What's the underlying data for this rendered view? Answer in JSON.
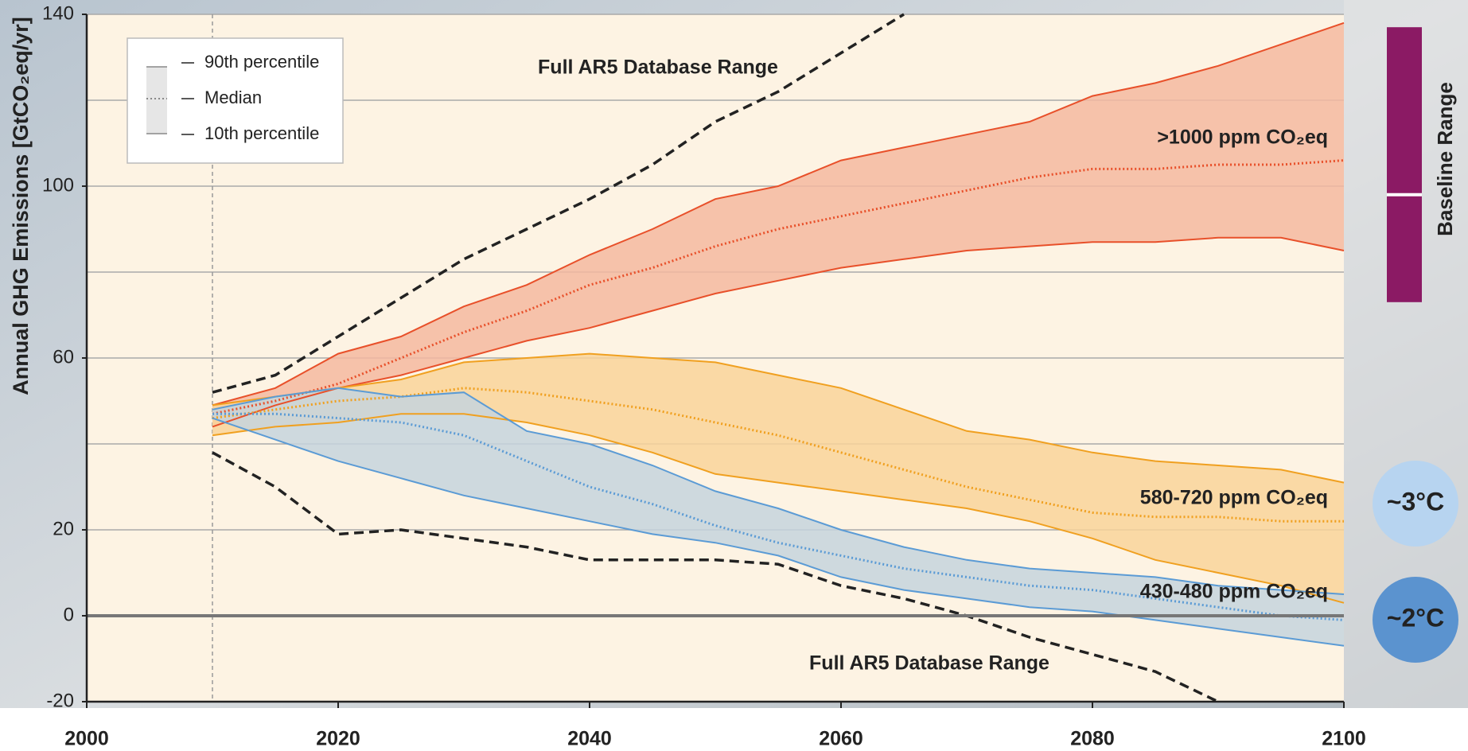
{
  "chart_data": {
    "type": "band",
    "y_label": "Annual GHG Emissions [GtCO₂eq/yr]",
    "x": [
      2010,
      2015,
      2020,
      2025,
      2030,
      2035,
      2040,
      2045,
      2050,
      2055,
      2060,
      2065,
      2070,
      2075,
      2080,
      2085,
      2090,
      2095,
      2100
    ],
    "xlim": [
      2000,
      2100
    ],
    "xticks": [
      2000,
      2020,
      2040,
      2060,
      2080,
      2100
    ],
    "ylim": [
      -20,
      140
    ],
    "yticks": [
      -20,
      0,
      20,
      60,
      100,
      140
    ],
    "grid_values": [
      -20,
      0,
      20,
      40,
      60,
      80,
      100,
      120,
      140
    ],
    "grid": true,
    "marker_x": 2010,
    "series": [
      {
        "name": ">1000 ppm CO₂eq",
        "color": "#e8502a",
        "fill": "#f4b9a0",
        "upper": [
          49,
          53,
          61,
          65,
          72,
          77,
          84,
          90,
          97,
          100,
          106,
          109,
          112,
          115,
          121,
          124,
          128,
          133,
          138
        ],
        "median": [
          47,
          50,
          54,
          60,
          66,
          71,
          77,
          81,
          86,
          90,
          93,
          96,
          99,
          102,
          104,
          104,
          105,
          105,
          106
        ],
        "lower": [
          44,
          49,
          53,
          56,
          60,
          64,
          67,
          71,
          75,
          78,
          81,
          83,
          85,
          86,
          87,
          87,
          88,
          88,
          85
        ]
      },
      {
        "name": "580-720 ppm CO₂eq",
        "color": "#f0a020",
        "fill": "#f9d49a",
        "upper": [
          49,
          51,
          53,
          55,
          59,
          60,
          61,
          60,
          59,
          56,
          53,
          48,
          43,
          41,
          38,
          36,
          35,
          34,
          31
        ],
        "median": [
          46,
          48,
          50,
          51,
          53,
          52,
          50,
          48,
          45,
          42,
          38,
          34,
          30,
          27,
          24,
          23,
          23,
          22,
          22
        ],
        "lower": [
          42,
          44,
          45,
          47,
          47,
          45,
          42,
          38,
          33,
          31,
          29,
          27,
          25,
          22,
          18,
          13,
          10,
          7,
          3
        ]
      },
      {
        "name": "430-480 ppm CO₂eq",
        "color": "#5b9bd5",
        "fill": "#c5d3dd",
        "upper": [
          48,
          51,
          53,
          51,
          52,
          43,
          40,
          35,
          29,
          25,
          20,
          16,
          13,
          11,
          10,
          9,
          7,
          6,
          5
        ],
        "median": [
          47,
          47,
          46,
          45,
          42,
          36,
          30,
          26,
          21,
          17,
          14,
          11,
          9,
          7,
          6,
          4,
          2,
          0,
          -1
        ],
        "lower": [
          46,
          41,
          36,
          32,
          28,
          25,
          22,
          19,
          17,
          14,
          9,
          6,
          4,
          2,
          1,
          -1,
          -3,
          -5,
          -7
        ]
      }
    ],
    "database_range": {
      "label_upper": "Full AR5 Database Range",
      "label_lower": "Full AR5 Database Range",
      "color": "#222222",
      "upper": [
        52,
        56,
        65,
        74,
        83,
        90,
        97,
        105,
        115,
        122,
        131,
        140,
        null,
        null,
        null,
        null,
        null,
        null,
        null
      ],
      "lower": [
        38,
        30,
        19,
        20,
        18,
        16,
        13,
        13,
        13,
        12,
        7,
        4,
        0,
        -5,
        -9,
        -13,
        -20,
        null,
        null
      ]
    },
    "legend": [
      "90th percentile",
      "Median",
      "10th percentile"
    ],
    "baseline": {
      "label": "Baseline Range",
      "color": "#8b1a64",
      "range": [
        73,
        137
      ],
      "median": 98
    },
    "temperature_labels": [
      {
        "label": "~3°C",
        "color": "#b7d4f0",
        "text_color": "#4a8fd0"
      },
      {
        "label": "~2°C",
        "color": "#5b93cf",
        "text_color": "#ffffff"
      }
    ]
  }
}
